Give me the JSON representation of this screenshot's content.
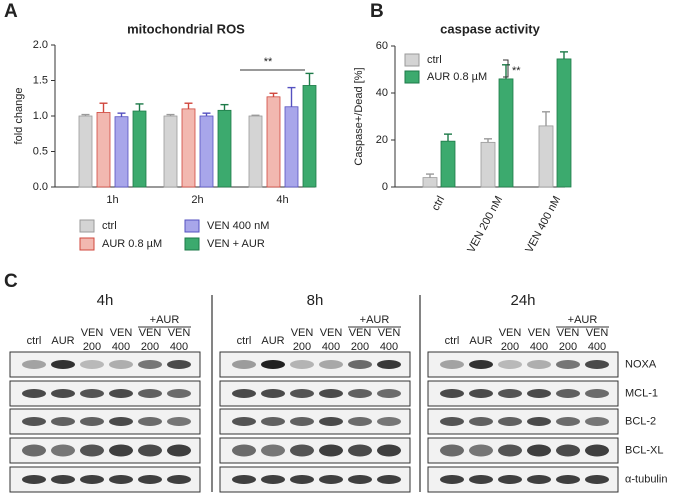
{
  "chart_data": [
    {
      "type": "bar",
      "panel_label": "A",
      "title": "mitochondrial ROS",
      "y_label": "fold change",
      "categories": [
        "1h",
        "2h",
        "4h"
      ],
      "series": [
        {
          "name": "ctrl",
          "color": "#d4d4d4",
          "edge": "#9a9a9a",
          "values": [
            1.0,
            1.0,
            1.0
          ],
          "errors": [
            0.02,
            0.02,
            0.01
          ]
        },
        {
          "name": "AUR 0.8 µM",
          "color": "#f2b8b0",
          "edge": "#d0473d",
          "values": [
            1.05,
            1.1,
            1.27
          ],
          "errors": [
            0.13,
            0.08,
            0.05
          ]
        },
        {
          "name": "VEN 400 nM",
          "color": "#a8a6ea",
          "edge": "#5551c0",
          "values": [
            0.99,
            1.0,
            1.13
          ],
          "errors": [
            0.05,
            0.04,
            0.27
          ]
        },
        {
          "name": "VEN + AUR",
          "color": "#3caa6e",
          "edge": "#1d7a48",
          "values": [
            1.07,
            1.08,
            1.43
          ],
          "errors": [
            0.1,
            0.08,
            0.17
          ]
        }
      ],
      "ylim": [
        0,
        2
      ],
      "yticks": [
        {
          "value": 0,
          "label": "0.0"
        },
        {
          "value": 0.5,
          "label": "0.5"
        },
        {
          "value": 1,
          "label": "1.0"
        },
        {
          "value": 1.5,
          "label": "1.5"
        },
        {
          "value": 2,
          "label": "2.0"
        }
      ],
      "annotation": "**",
      "legend": "below"
    },
    {
      "type": "bar",
      "panel_label": "B",
      "title": "caspase activity",
      "y_label": "Caspase+/Dead [%]",
      "categories": [
        "ctrl",
        "VEN 200 nM",
        "VEN 400 nM"
      ],
      "series": [
        {
          "name": "ctrl",
          "color": "#d4d4d4",
          "edge": "#9a9a9a",
          "values": [
            4,
            19,
            26
          ],
          "errors": [
            1.5,
            1.5,
            6
          ]
        },
        {
          "name": "AUR 0.8 µM",
          "color": "#3caa6e",
          "edge": "#1d7a48",
          "values": [
            19.5,
            46,
            54.5
          ],
          "errors": [
            3,
            6,
            3
          ]
        }
      ],
      "ylim": [
        0,
        60
      ],
      "yticks": [
        0,
        20,
        40,
        60
      ],
      "annotation": "**",
      "legend": "upper left"
    }
  ],
  "blot": {
    "panel_label": "C",
    "timepoints": [
      "4h",
      "8h",
      "24h"
    ],
    "combo_label": "+AUR",
    "lanes": [
      [
        "ctrl"
      ],
      [
        "AUR"
      ],
      [
        "VEN",
        "200"
      ],
      [
        "VEN",
        "400"
      ],
      [
        "VEN",
        "200"
      ],
      [
        "VEN",
        "400"
      ]
    ],
    "rows": [
      "NOXA",
      "MCL-1",
      "BCL-2",
      "BCL-XL",
      "α-tubulin"
    ]
  }
}
